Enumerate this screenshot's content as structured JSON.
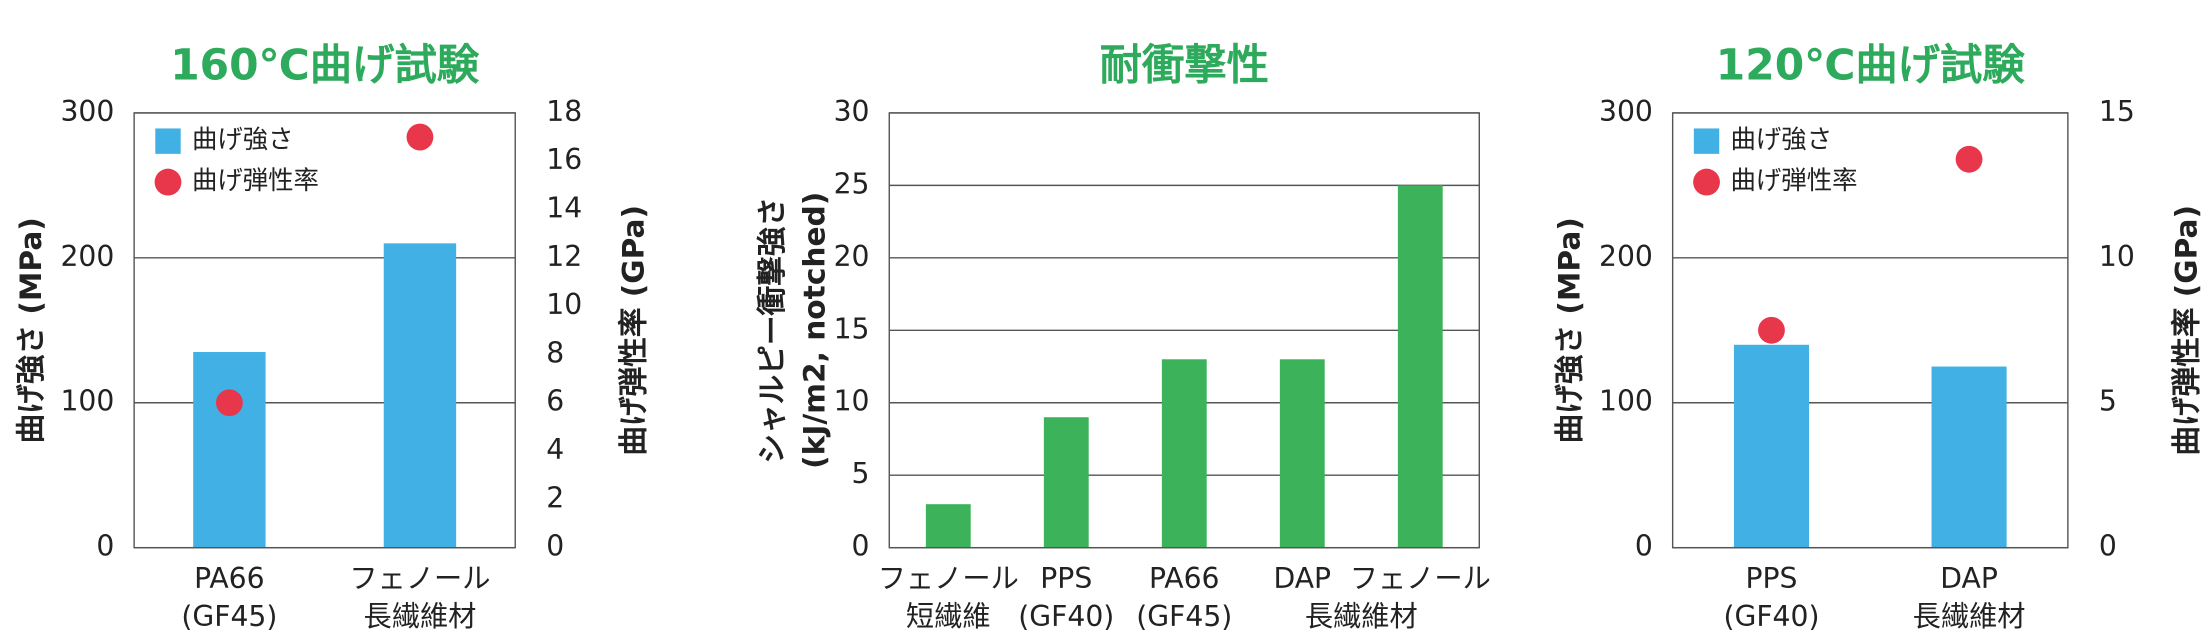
{
  "chart_data": [
    {
      "type": "combo",
      "title": "160℃曲げ試験",
      "ylabel": "曲げ強さ (MPa)",
      "y2label": "曲げ弾性率 (GPa)",
      "categories": [
        [
          "PA66",
          "(GF45)"
        ],
        [
          "フェノール",
          "長繊維材"
        ]
      ],
      "label_colors": [
        "#222222",
        "#e8374a"
      ],
      "series": [
        {
          "name": "曲げ強さ",
          "type": "bar",
          "color": "#41b0e4",
          "values": [
            135,
            210
          ]
        },
        {
          "name": "曲げ弾性率",
          "type": "scatter",
          "axis": "y2",
          "color": "#e8374a",
          "values": [
            6.0,
            17.0
          ]
        }
      ],
      "ylim": [
        0,
        300
      ],
      "yticks": [
        0,
        100,
        200,
        300
      ],
      "y2lim": [
        0,
        18
      ],
      "y2ticks": [
        0,
        2,
        4,
        6,
        8,
        10,
        12,
        14,
        16,
        18
      ],
      "grid": true,
      "legend": "upper left"
    },
    {
      "type": "bar",
      "title": "耐衝撃性",
      "ylabel": [
        "シャルピー衝撃強さ",
        "(kJ/m2, notched)"
      ],
      "categories": [
        [
          "フェノール",
          "短繊維"
        ],
        [
          "PPS",
          "(GF40)"
        ],
        [
          "PA66",
          "(GF45)"
        ],
        [
          "DAP"
        ],
        [
          "フェノール"
        ]
      ],
      "label_colors": [
        "#222222",
        "#222222",
        "#222222",
        "#e8374a",
        "#e8374a"
      ],
      "group_labels": [
        {
          "label": "長繊維材",
          "categories": [
            3,
            4
          ],
          "color": "#e8374a"
        }
      ],
      "values": [
        3,
        9,
        13,
        13,
        25
      ],
      "color": "#3cb35a",
      "ylim": [
        0,
        30
      ],
      "yticks": [
        0,
        5,
        10,
        15,
        20,
        25,
        30
      ],
      "grid": true
    },
    {
      "type": "combo",
      "title": "120℃曲げ試験",
      "ylabel": "曲げ強さ (MPa)",
      "y2label": "曲げ弾性率 (GPa)",
      "categories": [
        [
          "PPS",
          "(GF40)"
        ],
        [
          "DAP",
          "長繊維材"
        ]
      ],
      "label_colors": [
        "#222222",
        "#e8374a"
      ],
      "series": [
        {
          "name": "曲げ強さ",
          "type": "bar",
          "color": "#41b0e4",
          "values": [
            140,
            125
          ]
        },
        {
          "name": "曲げ弾性率",
          "type": "scatter",
          "axis": "y2",
          "color": "#e8374a",
          "values": [
            7.5,
            13.4
          ]
        }
      ],
      "ylim": [
        0,
        300
      ],
      "yticks": [
        0,
        100,
        200,
        300
      ],
      "y2lim": [
        0,
        15
      ],
      "y2ticks": [
        0,
        5,
        10,
        15
      ],
      "grid": true,
      "legend": "upper left"
    }
  ]
}
